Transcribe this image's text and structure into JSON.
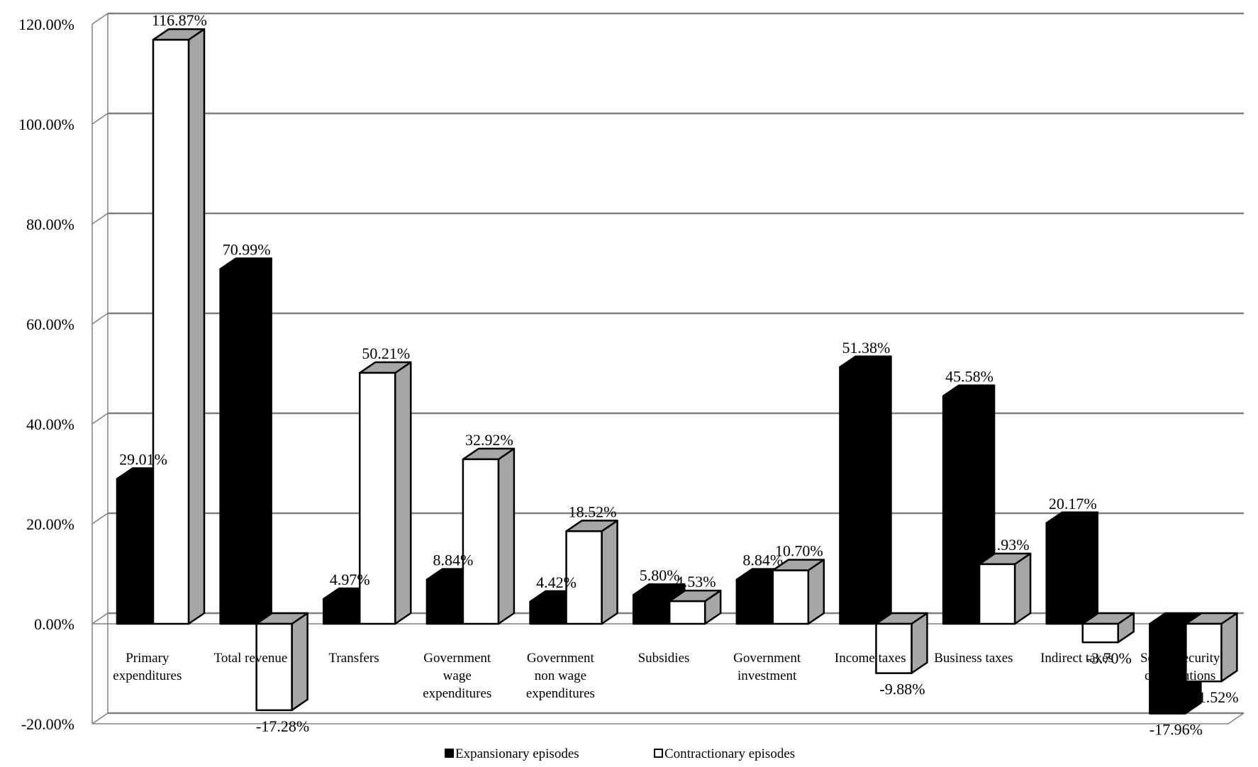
{
  "chart_data": {
    "type": "bar",
    "title": "",
    "xlabel": "",
    "ylabel": "",
    "ylim": [
      -20,
      120
    ],
    "yticks": [
      "-20.00%",
      "0.00%",
      "20.00%",
      "40.00%",
      "60.00%",
      "80.00%",
      "100.00%",
      "120.00%"
    ],
    "grid": true,
    "legend_position": "bottom",
    "categories": [
      [
        "Primary",
        "expenditures"
      ],
      [
        "Total revenue"
      ],
      [
        "Transfers"
      ],
      [
        "Government",
        "wage",
        "expenditures"
      ],
      [
        "Government",
        "non wage",
        "expenditures"
      ],
      [
        "Subsidies"
      ],
      [
        "Government",
        "investment"
      ],
      [
        "Income taxes"
      ],
      [
        "Business taxes"
      ],
      [
        "Indirect taxes"
      ],
      [
        "Social security",
        "contributions"
      ]
    ],
    "series": [
      {
        "name": "Expansionary episodes",
        "color": "#000000",
        "values": [
          29.01,
          70.99,
          4.97,
          8.84,
          4.42,
          5.8,
          8.84,
          51.38,
          45.58,
          20.17,
          -17.96
        ],
        "labels": [
          "29.01%",
          "70.99%",
          "4.97%",
          "8.84%",
          "4.42%",
          "5.80%",
          "8.84%",
          "51.38%",
          "45.58%",
          "20.17%",
          "-17.96%"
        ]
      },
      {
        "name": "Contractionary episodes",
        "color": "#ffffff",
        "values": [
          116.87,
          -17.28,
          50.21,
          32.92,
          18.52,
          4.53,
          10.7,
          -9.88,
          11.93,
          -3.7,
          -11.52
        ],
        "labels": [
          "116.87%",
          "-17.28%",
          "50.21%",
          "32.92%",
          "18.52%",
          "4.53%",
          "10.70%",
          "-9.88%",
          "11.93%",
          "-3.70%",
          "-11.52%"
        ]
      }
    ]
  }
}
